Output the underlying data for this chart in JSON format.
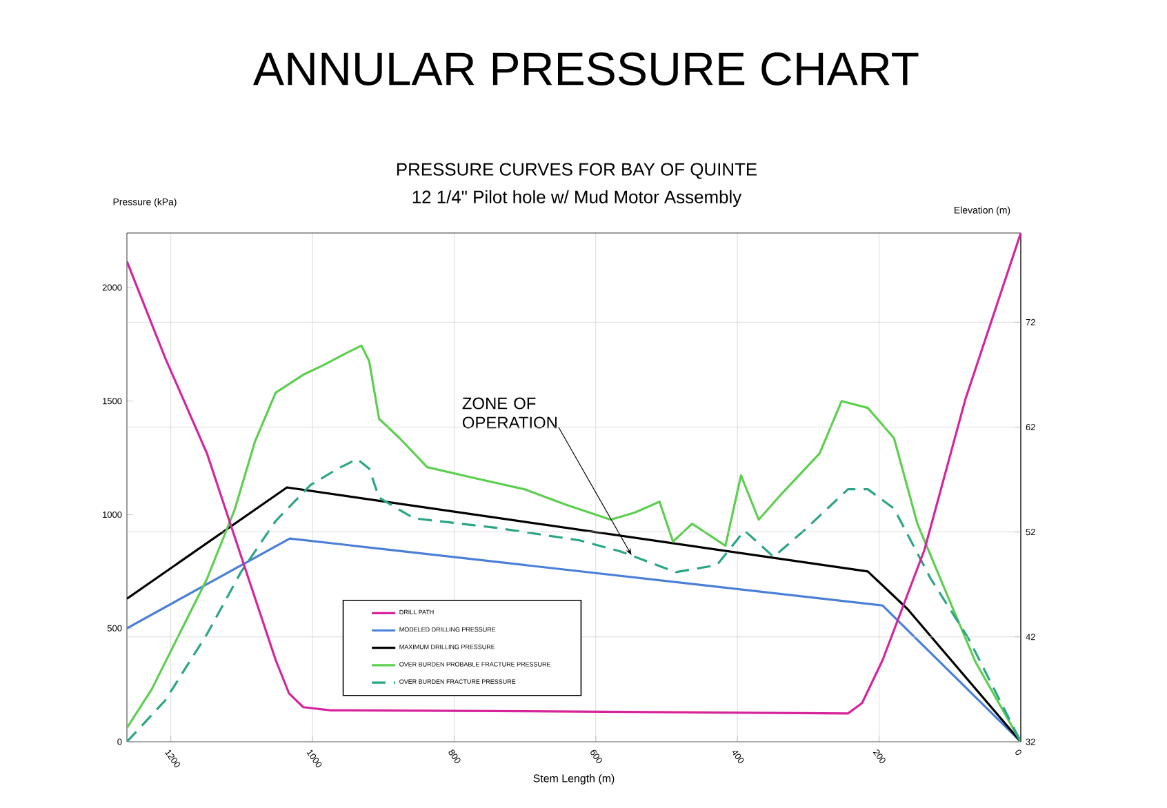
{
  "chart_data": {
    "type": "line",
    "title": "ANNULAR PRESSURE CHART",
    "subtitle": "PRESSURE CURVES FOR BAY OF QUINTE",
    "xlabel": "Stem Length (m)",
    "ylabel": "Pressure (kPa)",
    "y2label": "Elevation (m)",
    "annotations": [
      "12 1/4\" Pilot hole w/ Mud Motor Assembly",
      {
        "text": "ZONE OF OPERATION",
        "x": 549,
        "y": 820
      }
    ],
    "xlim": [
      1262,
      0
    ],
    "xticks": [
      1200,
      1000,
      800,
      600,
      400,
      200,
      0
    ],
    "ylim": [
      0,
      2240
    ],
    "yticks": [
      0,
      500,
      1000,
      1500,
      2000
    ],
    "y2lim": [
      32,
      80.5
    ],
    "y2ticks": [
      32,
      42,
      52,
      62,
      72
    ],
    "grid": true,
    "legend": "bottom",
    "series": [
      {
        "name": "DRILL PATH",
        "color": "#d6239c",
        "axis": "y2",
        "line_style": "solid",
        "x": [
          1262,
          1208,
          1149,
          1091,
          1052,
          1033,
          1013,
          974,
          662,
          244,
          224,
          195,
          136,
          78,
          0
        ],
        "values": [
          77.8,
          68.6,
          59.5,
          47.7,
          39.8,
          36.6,
          35.3,
          35.0,
          34.9,
          34.7,
          35.7,
          39.8,
          50.3,
          64.7,
          80.5
        ]
      },
      {
        "name": "MODELED DRILLING PRESSURE",
        "color": "#4a7fd8",
        "line_style": "solid",
        "x": [
          1262,
          1032,
          195,
          0
        ],
        "values": [
          500,
          895,
          600,
          0
        ]
      },
      {
        "name": "MAXIMUM DRILLING PRESSURE",
        "color": "#000000",
        "line_style": "solid",
        "x": [
          1262,
          1036,
          216,
          160,
          0
        ],
        "values": [
          630,
          1120,
          750,
          585,
          0
        ]
      },
      {
        "name": "OVER BURDEN PROBABLE FRACTURE PRESSURE",
        "color": "#5ccf4e",
        "line_style": "solid",
        "x": [
          1262,
          1227,
          1188,
          1149,
          1110,
          1081,
          1052,
          1013,
          984,
          955,
          931,
          920,
          906,
          877,
          838,
          770,
          701,
          643,
          579,
          545,
          510,
          491,
          464,
          417,
          395,
          370,
          337,
          284,
          253,
          216,
          179,
          146,
          97,
          64,
          0
        ],
        "values": [
          61,
          231,
          474,
          717,
          1021,
          1324,
          1537,
          1616,
          1659,
          1707,
          1744,
          1677,
          1422,
          1337,
          1209,
          1160,
          1112,
          1045,
          978,
          1009,
          1057,
          881,
          960,
          863,
          1173,
          978,
          1094,
          1270,
          1500,
          1470,
          1337,
          960,
          595,
          352,
          0
        ]
      },
      {
        "name": "OVER BURDEN FRACTURE PRESSURE",
        "color": "#2aa586",
        "line_style": "dashed",
        "x": [
          1262,
          1208,
          1149,
          1101,
          1052,
          1003,
          964,
          937,
          920,
          906,
          857,
          740,
          623,
          565,
          487,
          429,
          390,
          349,
          306,
          244,
          216,
          179,
          127,
          74,
          0
        ],
        "values": [
          0,
          182,
          474,
          747,
          972,
          1130,
          1203,
          1245,
          1203,
          1075,
          984,
          942,
          887,
          838,
          747,
          778,
          930,
          814,
          930,
          1112,
          1112,
          1027,
          717,
          456,
          0
        ]
      }
    ]
  }
}
